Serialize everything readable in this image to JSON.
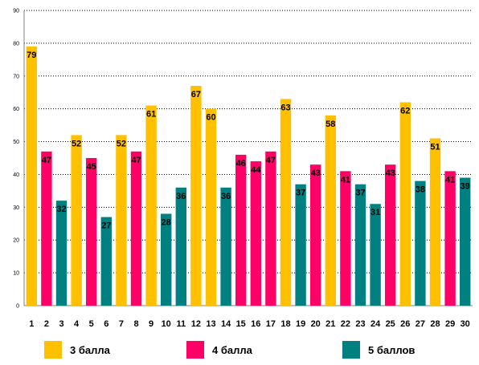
{
  "chart_data": {
    "type": "bar",
    "title": "",
    "xlabel": "",
    "ylabel": "",
    "ylim": [
      0,
      90
    ],
    "yticks": [
      0,
      10,
      20,
      30,
      40,
      50,
      60,
      70,
      80,
      90
    ],
    "grid": true,
    "legend_position": "bottom",
    "categories": [
      "1",
      "2",
      "3",
      "4",
      "5",
      "6",
      "7",
      "8",
      "9",
      "10",
      "11",
      "12",
      "13",
      "14",
      "15",
      "16",
      "17",
      "18",
      "19",
      "20",
      "21",
      "22",
      "23",
      "24",
      "25",
      "26",
      "27",
      "28",
      "29",
      "30"
    ],
    "values": [
      79,
      47,
      32,
      52,
      45,
      27,
      52,
      47,
      61,
      28,
      36,
      67,
      60,
      36,
      46,
      44,
      47,
      63,
      37,
      43,
      58,
      41,
      37,
      31,
      43,
      62,
      38,
      51,
      41,
      39
    ],
    "bar_series": [
      0,
      1,
      2,
      0,
      1,
      2,
      0,
      1,
      0,
      2,
      2,
      0,
      0,
      2,
      1,
      1,
      1,
      0,
      2,
      1,
      0,
      1,
      2,
      2,
      1,
      0,
      2,
      0,
      1,
      2
    ],
    "series": [
      {
        "name": "3 балла",
        "color": "#FFC000"
      },
      {
        "name": "4 балла",
        "color": "#FF0066"
      },
      {
        "name": "5 баллов",
        "color": "#008080"
      }
    ]
  }
}
